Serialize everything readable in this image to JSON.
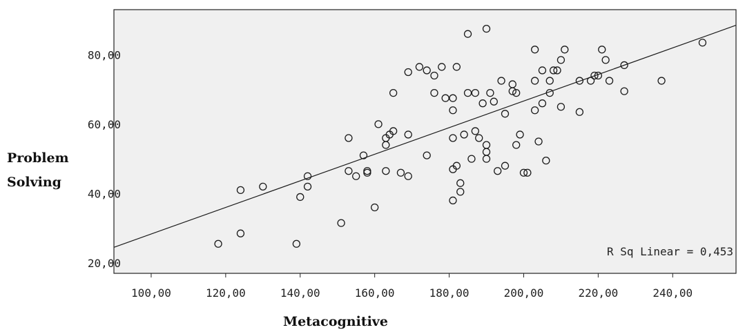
{
  "chart_data": {
    "type": "scatter",
    "xlabel": "Metacognitive",
    "ylabel_lines": [
      "Problem",
      "Solving"
    ],
    "xlim": [
      90,
      257
    ],
    "ylim": [
      17,
      93
    ],
    "x_ticks": [
      100,
      120,
      140,
      160,
      180,
      200,
      220,
      240
    ],
    "x_tick_labels": [
      "100,00",
      "120,00",
      "140,00",
      "160,00",
      "180,00",
      "200,00",
      "220,00",
      "240,00"
    ],
    "y_ticks": [
      20,
      40,
      60,
      80
    ],
    "y_tick_labels": [
      "20,00",
      "40,00",
      "60,00",
      "80,00"
    ],
    "grid": false,
    "background_color": "#f0f0f0",
    "marker_color": "#1a1a1a",
    "fit_line": {
      "x": [
        90,
        257
      ],
      "y": [
        24.5,
        88.5
      ]
    },
    "annotation": "R Sq Linear = 0,453",
    "points": [
      [
        118,
        25.5
      ],
      [
        124,
        28.5
      ],
      [
        124,
        41
      ],
      [
        130,
        42
      ],
      [
        139,
        25.5
      ],
      [
        140,
        39
      ],
      [
        142,
        42
      ],
      [
        142,
        45
      ],
      [
        151,
        31.5
      ],
      [
        153,
        56
      ],
      [
        153,
        46.5
      ],
      [
        155,
        45
      ],
      [
        157,
        51
      ],
      [
        158,
        46.5
      ],
      [
        158,
        46
      ],
      [
        160,
        36
      ],
      [
        161,
        60
      ],
      [
        163,
        56
      ],
      [
        163,
        54
      ],
      [
        163,
        46.5
      ],
      [
        164,
        57
      ],
      [
        165,
        58
      ],
      [
        165,
        69
      ],
      [
        167,
        46
      ],
      [
        169,
        45
      ],
      [
        169,
        57
      ],
      [
        169,
        75
      ],
      [
        172,
        76.5
      ],
      [
        174,
        75.5
      ],
      [
        174,
        51
      ],
      [
        176,
        74
      ],
      [
        176,
        69
      ],
      [
        178,
        76.5
      ],
      [
        179,
        67.5
      ],
      [
        181,
        38
      ],
      [
        181,
        47
      ],
      [
        181,
        56
      ],
      [
        181,
        64
      ],
      [
        181,
        67.5
      ],
      [
        182,
        48
      ],
      [
        182,
        76.5
      ],
      [
        183,
        40.5
      ],
      [
        183,
        43
      ],
      [
        184,
        57
      ],
      [
        185,
        86
      ],
      [
        185,
        69
      ],
      [
        186,
        50
      ],
      [
        187,
        69
      ],
      [
        187,
        58
      ],
      [
        188,
        56
      ],
      [
        189,
        66
      ],
      [
        190,
        87.5
      ],
      [
        190,
        54
      ],
      [
        190,
        52
      ],
      [
        190,
        50
      ],
      [
        191,
        69
      ],
      [
        192,
        66.5
      ],
      [
        193,
        46.5
      ],
      [
        194,
        72.5
      ],
      [
        195,
        63
      ],
      [
        195,
        48
      ],
      [
        197,
        71.5
      ],
      [
        197,
        69.5
      ],
      [
        198,
        69
      ],
      [
        198,
        54
      ],
      [
        199,
        57
      ],
      [
        200,
        46
      ],
      [
        201,
        46
      ],
      [
        203,
        81.5
      ],
      [
        203,
        72.5
      ],
      [
        203,
        64
      ],
      [
        204,
        55
      ],
      [
        205,
        75.5
      ],
      [
        205,
        66
      ],
      [
        206,
        49.5
      ],
      [
        207,
        72.5
      ],
      [
        207,
        69
      ],
      [
        208,
        75.5
      ],
      [
        209,
        75.5
      ],
      [
        210,
        78.5
      ],
      [
        210,
        65
      ],
      [
        211,
        81.5
      ],
      [
        215,
        72.5
      ],
      [
        215,
        63.5
      ],
      [
        218,
        72.5
      ],
      [
        219,
        74
      ],
      [
        220,
        74
      ],
      [
        221,
        81.5
      ],
      [
        222,
        78.5
      ],
      [
        223,
        72.5
      ],
      [
        227,
        77
      ],
      [
        227,
        69.5
      ],
      [
        237,
        72.5
      ],
      [
        248,
        83.5
      ]
    ]
  }
}
